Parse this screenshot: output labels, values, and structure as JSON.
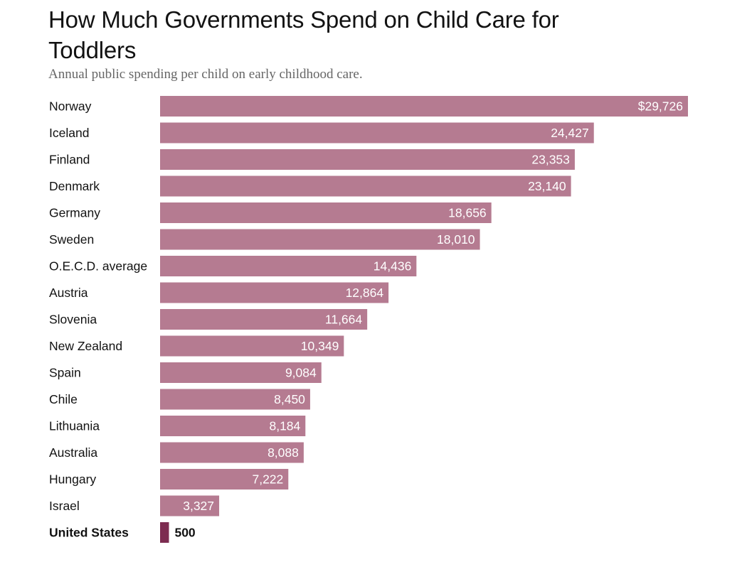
{
  "title": "How Much Governments Spend on Child Care for Toddlers",
  "subtitle": "Annual public spending per child on early childhood care.",
  "colors": {
    "bar": "#b57b91",
    "highlight_bar": "#7d2c51"
  },
  "chart_data": {
    "type": "bar",
    "orientation": "horizontal",
    "title": "How Much Governments Spend on Child Care for Toddlers",
    "subtitle": "Annual public spending per child on early childhood care.",
    "xlabel": "",
    "ylabel": "",
    "grid": false,
    "xlim": [
      0,
      29726
    ],
    "categories": [
      "Norway",
      "Iceland",
      "Finland",
      "Denmark",
      "Germany",
      "Sweden",
      "O.E.C.D. average",
      "Austria",
      "Slovenia",
      "New Zealand",
      "Spain",
      "Chile",
      "Lithuania",
      "Australia",
      "Hungary",
      "Israel",
      "United States"
    ],
    "values": [
      29726,
      24427,
      23353,
      23140,
      18656,
      18010,
      14436,
      12864,
      11664,
      10349,
      9084,
      8450,
      8184,
      8088,
      7222,
      3327,
      500
    ],
    "value_labels": [
      "$29,726",
      "24,427",
      "23,353",
      "23,140",
      "18,656",
      "18,010",
      "14,436",
      "12,864",
      "11,664",
      "10,349",
      "9,084",
      "8,450",
      "8,184",
      "8,088",
      "7,222",
      "3,327",
      "500"
    ],
    "highlight": "United States"
  }
}
